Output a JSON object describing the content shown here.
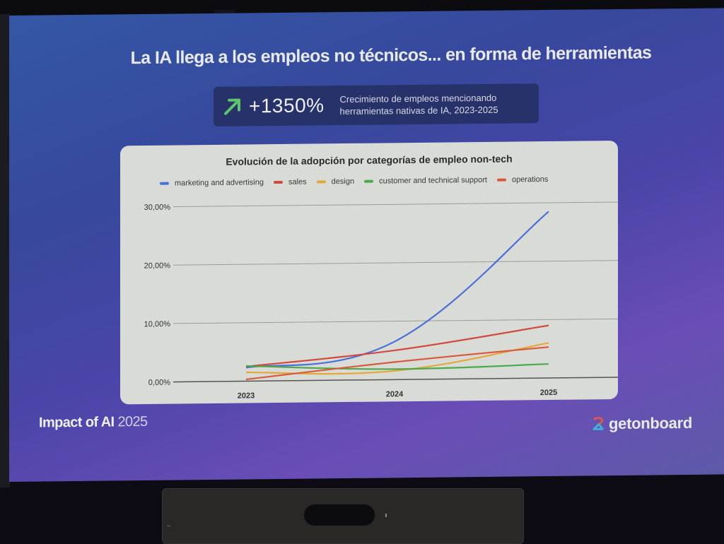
{
  "slide": {
    "title": "La IA llega a los empleos no técnicos... en forma de herramientas",
    "stat": {
      "icon": "arrow-up-right-icon",
      "value": "+1350%",
      "description_line1": "Crecimiento de empleos mencionando",
      "description_line2": "herramientas nativas de IA, 2023-2025",
      "icon_color": "#5cc46a"
    },
    "footer": {
      "event_name": "Impact of AI",
      "event_year": "2025",
      "brand": "getonboard",
      "brand_icon": "getonboard-logo-icon"
    },
    "colors": {
      "bg_top": "#3457a5",
      "bg_bottom": "#6a4db7",
      "stat_box": "#27316a",
      "chart_card": "#d9dbd6"
    }
  },
  "chart_data": {
    "type": "line",
    "title": "Evolución de la adopción por categorías de empleo non-tech",
    "xlabel": "",
    "ylabel": "",
    "categories": [
      "2023",
      "2024",
      "2025"
    ],
    "y_ticks": [
      "0,00%",
      "10,00%",
      "20,00%",
      "30,00%"
    ],
    "ylim": [
      0,
      30
    ],
    "grid": true,
    "legend_position": "top",
    "series": [
      {
        "name": "marketing and advertising",
        "color": "#4a6fd8",
        "values": [
          2.3,
          6.5,
          28.5
        ]
      },
      {
        "name": "sales",
        "color": "#d04a3e",
        "values": [
          2.5,
          5.0,
          9.0
        ]
      },
      {
        "name": "design",
        "color": "#e2a93a",
        "values": [
          1.5,
          1.5,
          6.0
        ]
      },
      {
        "name": "customer and technical support",
        "color": "#4caa4c",
        "values": [
          2.6,
          1.8,
          2.4
        ]
      },
      {
        "name": "operations",
        "color": "#d75a3a",
        "values": [
          0.3,
          3.0,
          5.3
        ]
      }
    ]
  }
}
